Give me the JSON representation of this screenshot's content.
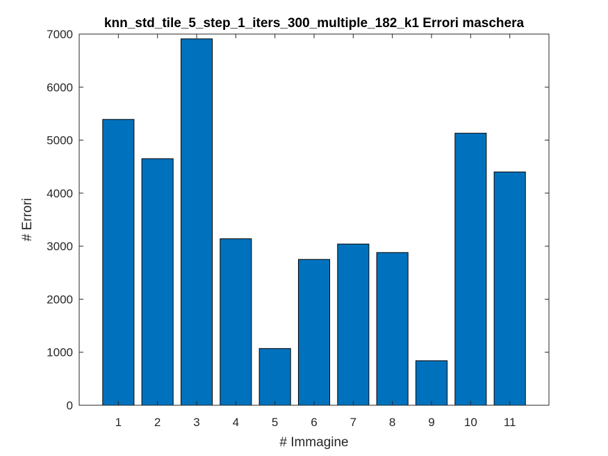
{
  "chart_data": {
    "type": "bar",
    "title": "knn_std_tile_5_step_1_iters_300_multiple_182_k1 Errori maschera",
    "xlabel": "# Immagine",
    "ylabel": "# Errori",
    "categories": [
      "1",
      "2",
      "3",
      "4",
      "5",
      "6",
      "7",
      "8",
      "9",
      "10",
      "11"
    ],
    "values": [
      5390,
      4650,
      6910,
      3140,
      1070,
      2750,
      3040,
      2880,
      840,
      5130,
      4400
    ],
    "ylim": [
      0,
      7000
    ],
    "yticks": [
      "0",
      "1000",
      "2000",
      "3000",
      "4000",
      "5000",
      "6000",
      "7000"
    ],
    "xlim": [
      0,
      12
    ],
    "grid": false,
    "bar_color": "#0072BD"
  }
}
